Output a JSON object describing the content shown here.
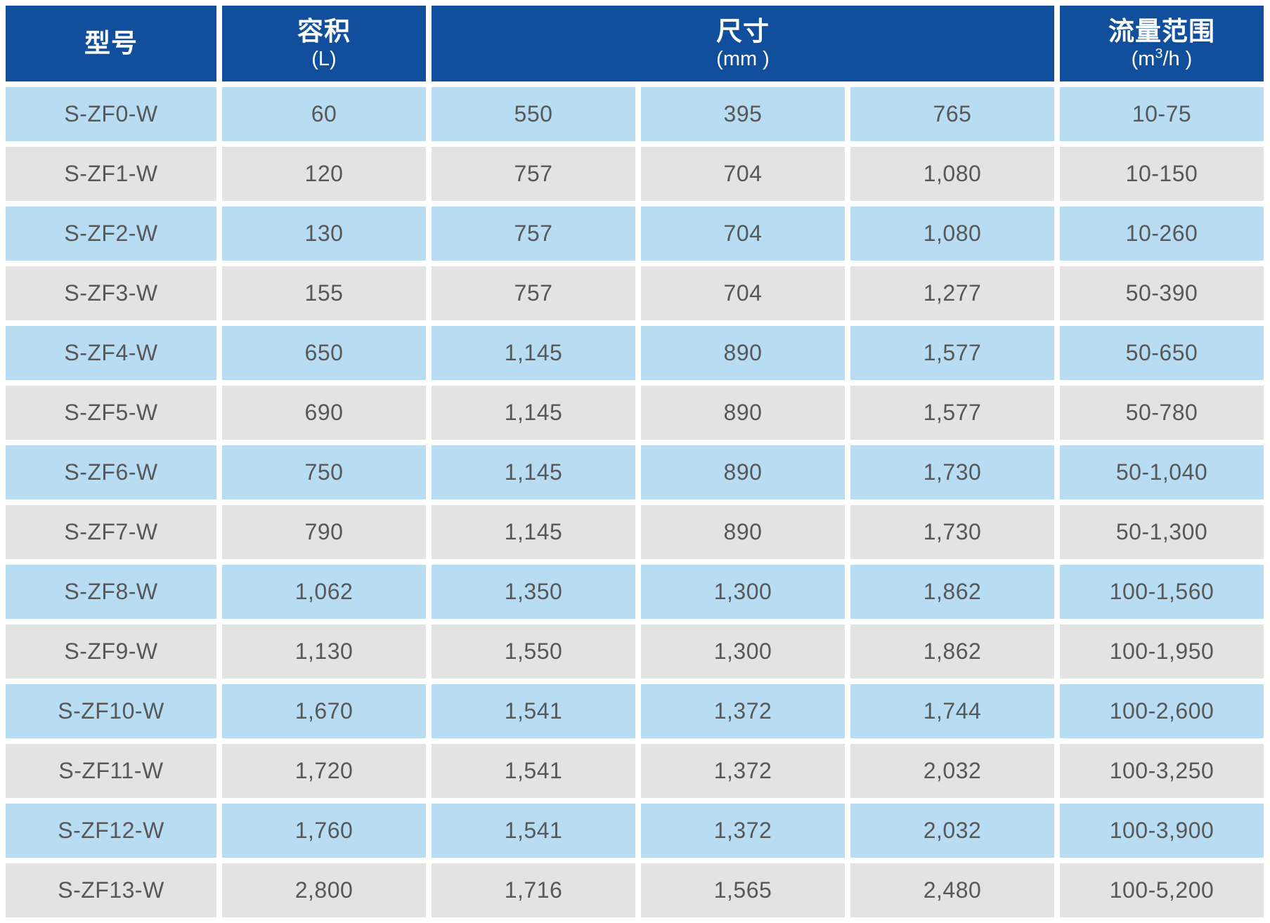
{
  "header": {
    "model": {
      "title": "型号"
    },
    "volume": {
      "title": "容积",
      "unit": "(L)"
    },
    "size": {
      "title": "尺寸",
      "unit": "(mm )"
    },
    "flow": {
      "title": "流量范围",
      "unit_prefix": "(m",
      "unit_sup": "3",
      "unit_suffix": "/h )"
    }
  },
  "rows": [
    {
      "model": "S-ZF0-W",
      "volume": "60",
      "dim1": "550",
      "dim2": "395",
      "dim3": "765",
      "flow": "10-75"
    },
    {
      "model": "S-ZF1-W",
      "volume": "120",
      "dim1": "757",
      "dim2": "704",
      "dim3": "1,080",
      "flow": "10-150"
    },
    {
      "model": "S-ZF2-W",
      "volume": "130",
      "dim1": "757",
      "dim2": "704",
      "dim3": "1,080",
      "flow": "10-260"
    },
    {
      "model": "S-ZF3-W",
      "volume": "155",
      "dim1": "757",
      "dim2": "704",
      "dim3": "1,277",
      "flow": "50-390"
    },
    {
      "model": "S-ZF4-W",
      "volume": "650",
      "dim1": "1,145",
      "dim2": "890",
      "dim3": "1,577",
      "flow": "50-650"
    },
    {
      "model": "S-ZF5-W",
      "volume": "690",
      "dim1": "1,145",
      "dim2": "890",
      "dim3": "1,577",
      "flow": "50-780"
    },
    {
      "model": "S-ZF6-W",
      "volume": "750",
      "dim1": "1,145",
      "dim2": "890",
      "dim3": "1,730",
      "flow": "50-1,040"
    },
    {
      "model": "S-ZF7-W",
      "volume": "790",
      "dim1": "1,145",
      "dim2": "890",
      "dim3": "1,730",
      "flow": "50-1,300"
    },
    {
      "model": "S-ZF8-W",
      "volume": "1,062",
      "dim1": "1,350",
      "dim2": "1,300",
      "dim3": "1,862",
      "flow": "100-1,560"
    },
    {
      "model": "S-ZF9-W",
      "volume": "1,130",
      "dim1": "1,550",
      "dim2": "1,300",
      "dim3": "1,862",
      "flow": "100-1,950"
    },
    {
      "model": "S-ZF10-W",
      "volume": "1,670",
      "dim1": "1,541",
      "dim2": "1,372",
      "dim3": "1,744",
      "flow": "100-2,600"
    },
    {
      "model": "S-ZF11-W",
      "volume": "1,720",
      "dim1": "1,541",
      "dim2": "1,372",
      "dim3": "2,032",
      "flow": "100-3,250"
    },
    {
      "model": "S-ZF12-W",
      "volume": "1,760",
      "dim1": "1,541",
      "dim2": "1,372",
      "dim3": "2,032",
      "flow": "100-3,900"
    },
    {
      "model": "S-ZF13-W",
      "volume": "2,800",
      "dim1": "1,716",
      "dim2": "1,565",
      "dim3": "2,480",
      "flow": "100-5,200"
    }
  ],
  "colors": {
    "header_bg": "#114e9b",
    "row_alt_blue": "#b8dcf2",
    "row_alt_gray": "#e3e3e4",
    "cell_text": "#57585a",
    "header_text": "#ffffff",
    "background": "#ffffff"
  }
}
